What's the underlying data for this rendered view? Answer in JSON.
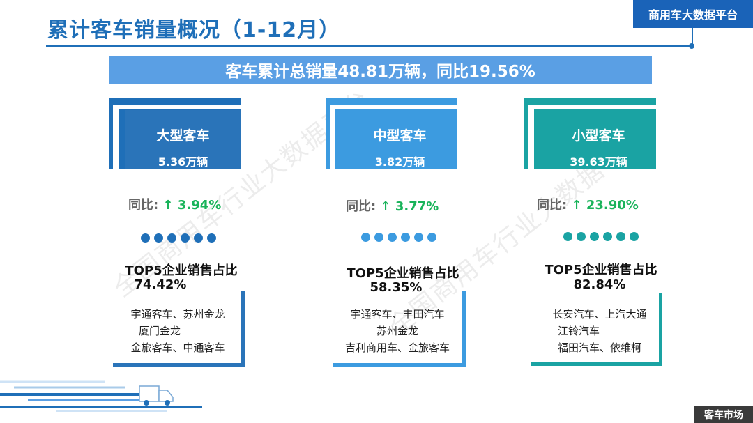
{
  "header": {
    "title": "累计客车销量概况（1-12月）",
    "platform": "商用车大数据平台"
  },
  "summary": "客车累计总销量48.81万辆，同比19.56%",
  "watermark": "全国商用车行业大数据平台",
  "colors": {
    "accent": "#1f6fb8",
    "large": "#1f6fb8",
    "medium": "#3c9be0",
    "small": "#1aa3a3",
    "growth": "#19b35a"
  },
  "segments": [
    {
      "name": "大型客车",
      "volume": "5.36万辆",
      "yoy_label": "同比:",
      "yoy_value": "↑ 3.94%",
      "top5_title": "TOP5企业销售占比",
      "top5_share": "74.42%",
      "companies": [
        "宇通客车、苏州金龙",
        "厦门金龙",
        "金旅客车、中通客车"
      ]
    },
    {
      "name": "中型客车",
      "volume": "3.82万辆",
      "yoy_label": "同比:",
      "yoy_value": "↑ 3.77%",
      "top5_title": "TOP5企业销售占比",
      "top5_share": "58.35%",
      "companies": [
        "宇通客车、丰田汽车",
        "苏州金龙",
        "吉利商用车、金旅客车"
      ]
    },
    {
      "name": "小型客车",
      "volume": "39.63万辆",
      "yoy_label": "同比:",
      "yoy_value": "↑ 23.90%",
      "top5_title": "TOP5企业销售占比",
      "top5_share": "82.84%",
      "companies": [
        "长安汽车、上汽大通",
        "江铃汽车",
        "福田汽车、依维柯"
      ]
    }
  ],
  "footer": {
    "market_label": "客车市场"
  }
}
